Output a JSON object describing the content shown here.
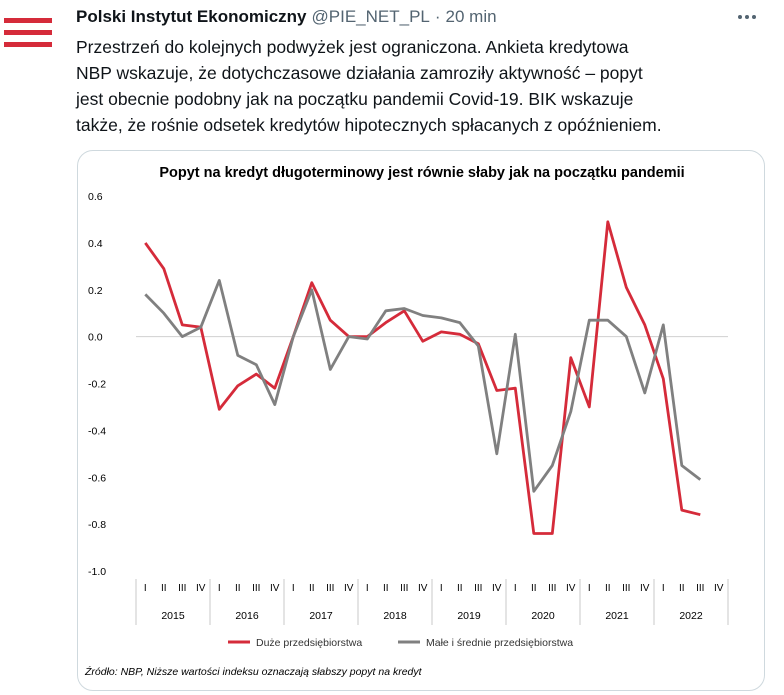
{
  "tweet": {
    "author_name": "Polski Instytut Ekonomiczny",
    "handle": "@PIE_NET_PL",
    "separator": "·",
    "time": "20 min",
    "text": "Przestrzeń do kolejnych podwyżek jest ograniczona. Ankieta kredytowa\nNBP wskazuje, że dotychczasowe działania zamroziły aktywność – popyt\njest obecnie podobny jak na początku pandemii Covid-19. BIK wskazuje\ntakże, że rośnie odsetek kredytów hipotecznych spłacanych z opóźnieniem.",
    "icons": {
      "avatar": "pie-logo-icon",
      "more": "more-options-icon"
    },
    "colors": {
      "logo": "#d52b3a",
      "muted": "#536471",
      "text": "#0f1419"
    }
  },
  "chart_data": {
    "type": "line",
    "title": "Popyt na kredyt długoterminowy jest równie słaby jak na początku pandemii",
    "xlabel": "",
    "ylabel": "",
    "ylim": [
      -1.0,
      0.6
    ],
    "yticks": [
      "0.6",
      "0.4",
      "0.2",
      "0.0",
      "-0.2",
      "-0.4",
      "-0.6",
      "-0.8",
      "-1.0"
    ],
    "quarters": [
      "I",
      "II",
      "III",
      "IV"
    ],
    "years": [
      "2015",
      "2016",
      "2017",
      "2018",
      "2019",
      "2020",
      "2021",
      "2022"
    ],
    "grid": false,
    "legend_position": "bottom",
    "source": "Źródło: NBP, Niższe wartości indeksu oznaczają słabszy popyt na kredyt",
    "series": [
      {
        "name": "Duże przedsiębiorstwa",
        "color": "#d52b3a",
        "values": [
          0.4,
          0.29,
          0.05,
          0.04,
          -0.31,
          -0.21,
          -0.16,
          -0.22,
          0.0,
          0.23,
          0.07,
          0.0,
          0.0,
          0.06,
          0.11,
          -0.02,
          0.02,
          0.01,
          -0.03,
          -0.23,
          -0.22,
          -0.84,
          -0.84,
          -0.09,
          -0.3,
          0.49,
          0.21,
          0.05,
          -0.18,
          -0.74,
          -0.76
        ]
      },
      {
        "name": "Małe i średnie przedsiębiorstwa",
        "color": "#808080",
        "values": [
          0.18,
          0.1,
          0.0,
          0.04,
          0.24,
          -0.08,
          -0.12,
          -0.29,
          0.0,
          0.2,
          -0.14,
          0.0,
          -0.01,
          0.11,
          0.12,
          0.09,
          0.08,
          0.06,
          -0.04,
          -0.5,
          0.01,
          -0.66,
          -0.55,
          -0.32,
          0.07,
          0.07,
          0.0,
          -0.24,
          0.05,
          -0.55,
          -0.61
        ]
      }
    ]
  }
}
